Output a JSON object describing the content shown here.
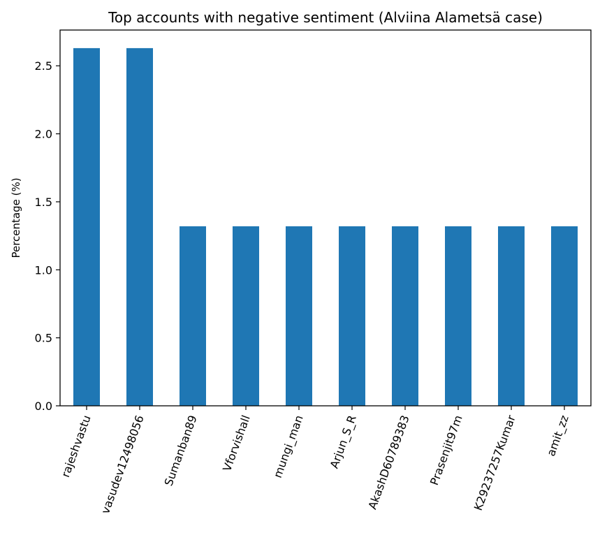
{
  "chart_data": {
    "type": "bar",
    "title": "Top accounts with negative sentiment (Alviina Alametsä case)",
    "xlabel": "",
    "ylabel": "Percentage (%)",
    "ylim": [
      0,
      2.763
    ],
    "yticks": [
      "0.0",
      "0.5",
      "1.0",
      "1.5",
      "2.0",
      "2.5"
    ],
    "grid": false,
    "legend": "none",
    "bar_color": "#1f77b4",
    "categories": [
      "rajeshvastu",
      "vasudev12498056",
      "Sumanban89",
      "Vforvishall",
      "mungi_man",
      "Arjun_S_R",
      "AkashD60789383",
      "Prasenjit97m",
      "K29237257Kumar",
      "amit_zz"
    ],
    "series": [
      {
        "values": [
          2.63,
          2.63,
          1.32,
          1.32,
          1.32,
          1.32,
          1.32,
          1.32,
          1.32,
          1.32
        ]
      }
    ]
  }
}
